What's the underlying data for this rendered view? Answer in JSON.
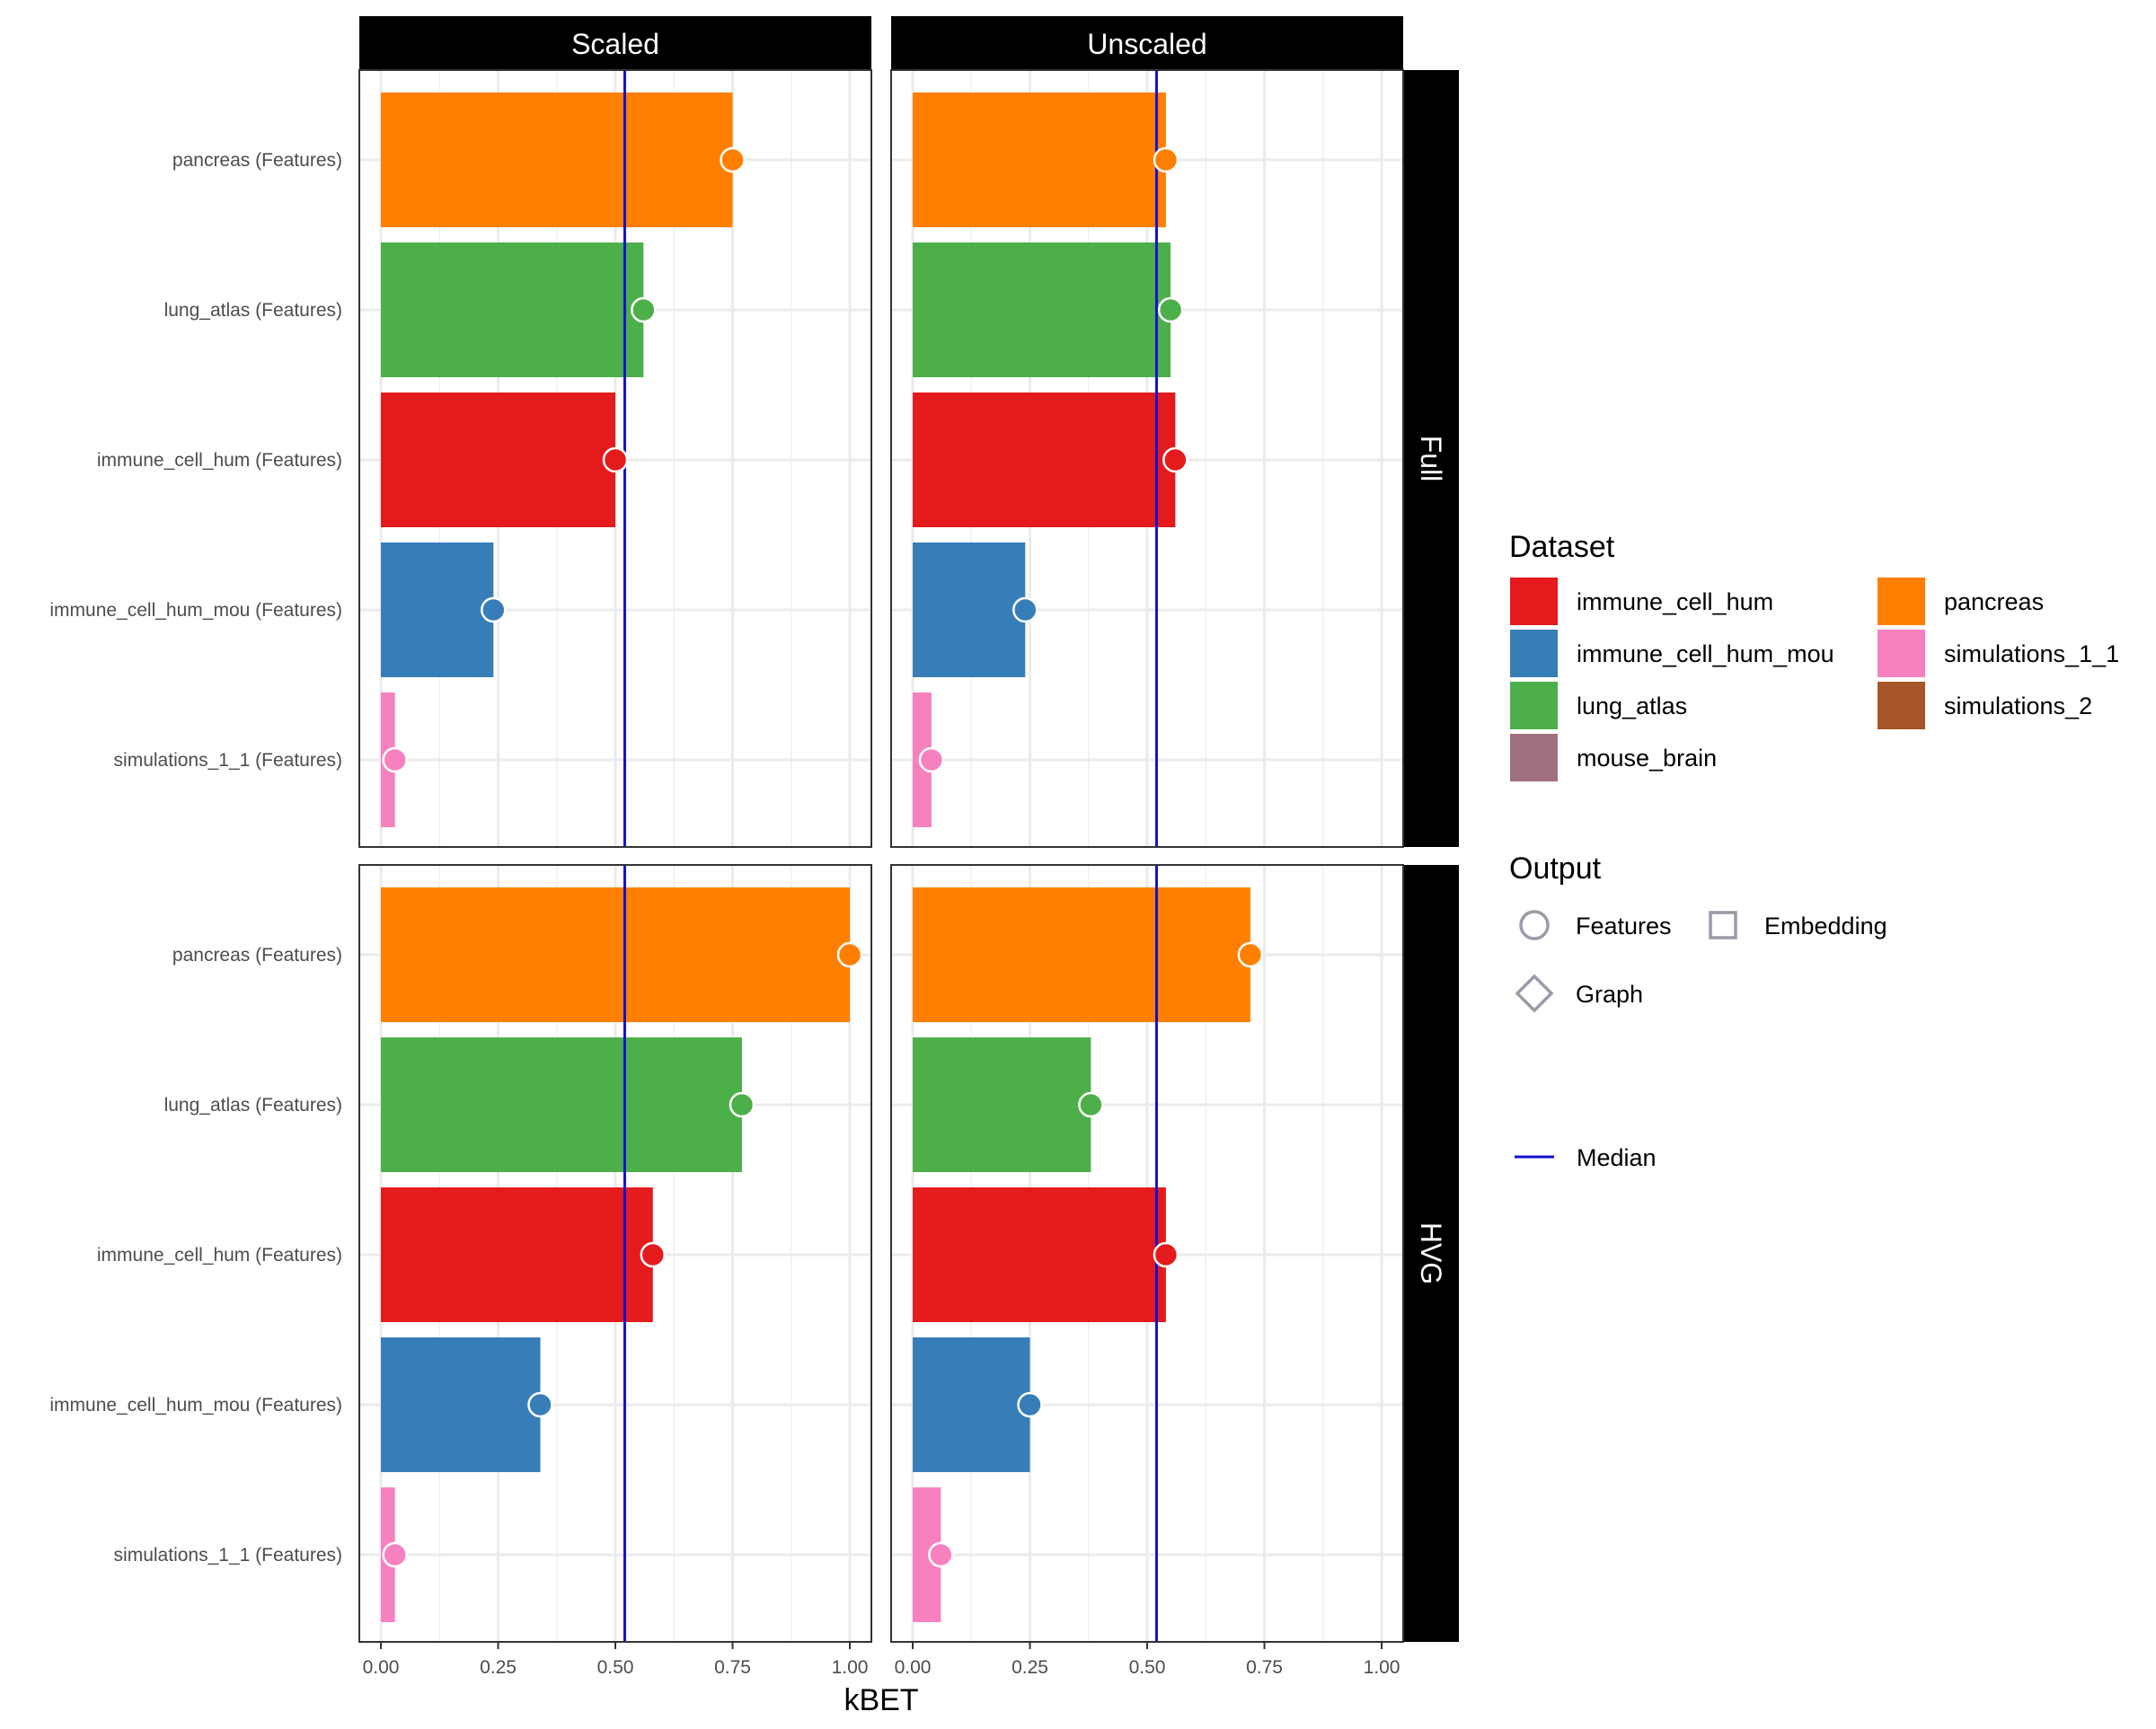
{
  "chart_data": {
    "type": "bar",
    "xlabel": "kBET",
    "xlim": [
      0,
      1
    ],
    "x_ticks": [
      "0.00",
      "0.25",
      "0.50",
      "0.75",
      "1.00"
    ],
    "categories": [
      "pancreas (Features)",
      "lung_atlas (Features)",
      "immune_cell_hum (Features)",
      "immune_cell_hum_mou (Features)",
      "simulations_1_1 (Features)"
    ],
    "category_dataset": [
      "pancreas",
      "lung_atlas",
      "immune_cell_hum",
      "immune_cell_hum_mou",
      "simulations_1_1"
    ],
    "column_facets": [
      "Scaled",
      "Unscaled"
    ],
    "row_facets": [
      "Full",
      "HVG"
    ],
    "median_line": 0.52,
    "panels": [
      {
        "column": "Scaled",
        "row": "Full",
        "values": [
          0.75,
          0.56,
          0.5,
          0.24,
          0.03
        ]
      },
      {
        "column": "Unscaled",
        "row": "Full",
        "values": [
          0.54,
          0.55,
          0.56,
          0.24,
          0.04
        ]
      },
      {
        "column": "Scaled",
        "row": "HVG",
        "values": [
          1.0,
          0.77,
          0.58,
          0.34,
          0.03
        ]
      },
      {
        "column": "Unscaled",
        "row": "HVG",
        "values": [
          0.72,
          0.38,
          0.54,
          0.25,
          0.06
        ]
      }
    ],
    "grid": true,
    "legend_position": "right",
    "legend": {
      "dataset_title": "Dataset",
      "datasets": [
        {
          "name": "immune_cell_hum",
          "color": "#e41a1c"
        },
        {
          "name": "immune_cell_hum_mou",
          "color": "#377eb8"
        },
        {
          "name": "lung_atlas",
          "color": "#4daf4a"
        },
        {
          "name": "mouse_brain",
          "color": "#a06f80"
        },
        {
          "name": "pancreas",
          "color": "#ff7f00"
        },
        {
          "name": "simulations_1_1",
          "color": "#f781bf"
        },
        {
          "name": "simulations_2",
          "color": "#a65628"
        }
      ],
      "output_title": "Output",
      "outputs": [
        {
          "name": "Features",
          "shape": "circle"
        },
        {
          "name": "Embedding",
          "shape": "square"
        },
        {
          "name": "Graph",
          "shape": "diamond"
        }
      ],
      "median_label": "Median",
      "median_color": "#1010d0"
    }
  }
}
